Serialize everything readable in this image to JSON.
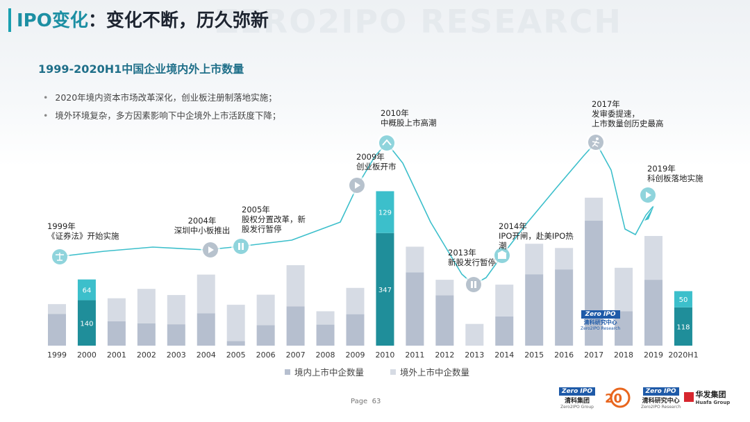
{
  "page": {
    "title_part1": "IPO变化",
    "title_part2": "：变化不断，历久弥新",
    "watermark": "ZERO2IPO RESEARCH",
    "page_label": "Page",
    "page_number": "63"
  },
  "chart_title": "1999-2020H1中国企业境内外上市数量",
  "bullets": [
    "2020年境内资本市场改革深化，创业板注册制落地实施；",
    "境外环境复杂，多方因素影响下中企境外上市活跃度下降；"
  ],
  "chart_data": {
    "type": "bar",
    "stacked": true,
    "title": "1999-2020H1中国企业境内外上市数量",
    "categories": [
      "1999",
      "2000",
      "2001",
      "2002",
      "2003",
      "2004",
      "2005",
      "2006",
      "2007",
      "2008",
      "2009",
      "2010",
      "2011",
      "2012",
      "2013",
      "2014",
      "2015",
      "2016",
      "2017",
      "2018",
      "2019",
      "2020H1"
    ],
    "series": [
      {
        "name": "境内上市中企数量",
        "values": [
          98,
          140,
          75,
          69,
          66,
          100,
          14,
          63,
          121,
          65,
          97,
          347,
          226,
          155,
          0,
          90,
          220,
          235,
          385,
          106,
          203,
          118
        ]
      },
      {
        "name": "境外上市中企数量",
        "values": [
          30,
          64,
          71,
          106,
          90,
          119,
          112,
          94,
          127,
          41,
          81,
          129,
          79,
          48,
          67,
          98,
          94,
          66,
          71,
          134,
          135,
          50
        ]
      }
    ],
    "highlight_categories": [
      "2000",
      "2010",
      "2020H1"
    ],
    "data_labels": {
      "2000": [
        140,
        64
      ],
      "2010": [
        347,
        129
      ],
      "2020H1": [
        118,
        50
      ]
    },
    "legend": [
      "境内上市中企数量",
      "境外上市中企数量"
    ],
    "legend_position": "bottom",
    "grid": false,
    "colors": {
      "domestic": "#b6bfcf",
      "overseas": "#d6dbe4",
      "domestic_highlight": "#1f8e9a",
      "overseas_highlight": "#3cbfcb",
      "trend_line": "#3cbfcb",
      "marker": "#b7c2cd"
    }
  },
  "annotations": [
    {
      "year": "1999",
      "lines": [
        "1999年",
        "《证券法》开始实施"
      ],
      "icon": "scale-icon"
    },
    {
      "year": "2004",
      "lines": [
        "2004年",
        "深圳中小板推出"
      ],
      "icon": "play-icon"
    },
    {
      "year": "2005",
      "lines": [
        "2005年",
        "股权分置改革，新",
        "股发行暂停"
      ],
      "icon": "pause-icon"
    },
    {
      "year": "2009",
      "lines": [
        "2009年",
        "创业板开市"
      ],
      "icon": "play-icon"
    },
    {
      "year": "2010",
      "lines": [
        "2010年",
        "中概股上市高潮"
      ],
      "icon": "peak-icon"
    },
    {
      "year": "2013",
      "lines": [
        "2013年",
        "新股发行暂停"
      ],
      "icon": "pause-icon"
    },
    {
      "year": "2014",
      "lines": [
        "2014年",
        "IPO开闸，赴美IPO热",
        "潮"
      ],
      "icon": "building-icon"
    },
    {
      "year": "2017",
      "lines": [
        "2017年",
        "发审委提速，",
        "上市数量创历史最高"
      ],
      "icon": "runner-icon"
    },
    {
      "year": "2019",
      "lines": [
        "2019年",
        "科创板落地实施"
      ],
      "icon": "play-icon"
    }
  ],
  "chart_watermark": {
    "brand": "Zero IPO",
    "cn": "清科研究中心",
    "en": "Zero2IPO Research"
  },
  "footer_logos": [
    {
      "brand": "Zero IPO",
      "cn": "清科集团",
      "en": "Zero2IPO Group"
    },
    {
      "brand": "20",
      "cn": "",
      "en": ""
    },
    {
      "brand": "Zero IPO",
      "cn": "清科研究中心",
      "en": "Zero2IPO Research"
    },
    {
      "brand": "华发集团",
      "cn": "",
      "en": "Huafa Group"
    }
  ]
}
